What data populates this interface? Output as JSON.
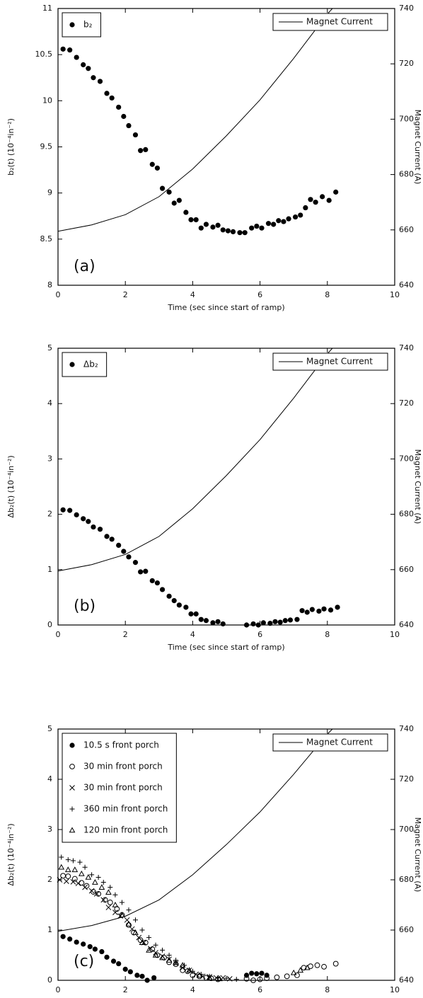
{
  "chart_data": [
    {
      "type": "scatter",
      "panel_label": "(a)",
      "xlabel": "Time (sec since start of ramp)",
      "ylabel": "b₂(t) (10⁻⁴in⁻²)",
      "y2label": "Magnet Current (A)",
      "xlim": [
        0,
        10
      ],
      "xticks": [
        0,
        2,
        4,
        6,
        8,
        10
      ],
      "ylim": [
        8,
        11
      ],
      "yticks": [
        8,
        8.5,
        9,
        9.5,
        10,
        10.5,
        11
      ],
      "y2lim": [
        640,
        740
      ],
      "y2ticks": [
        640,
        660,
        680,
        700,
        720,
        740
      ],
      "series": [
        {
          "name": "b₂",
          "color": "#000000",
          "marker": "filled-circle",
          "x": [
            0.15,
            0.35,
            0.55,
            0.75,
            0.9,
            1.05,
            1.25,
            1.45,
            1.6,
            1.8,
            1.95,
            2.1,
            2.3,
            2.45,
            2.6,
            2.8,
            2.95,
            3.1,
            3.3,
            3.45,
            3.6,
            3.8,
            3.95,
            4.1,
            4.25,
            4.4,
            4.6,
            4.75,
            4.9,
            5.05,
            5.2,
            5.4,
            5.55,
            5.75,
            5.9,
            6.05,
            6.25,
            6.4,
            6.55,
            6.7,
            6.85,
            7.05,
            7.2,
            7.35,
            7.5,
            7.65,
            7.85,
            8.05,
            8.25
          ],
          "values": [
            10.56,
            10.55,
            10.47,
            10.39,
            10.35,
            10.25,
            10.21,
            10.08,
            10.03,
            9.93,
            9.83,
            9.73,
            9.63,
            9.46,
            9.47,
            9.31,
            9.27,
            9.05,
            9.01,
            8.89,
            8.92,
            8.79,
            8.71,
            8.71,
            8.62,
            8.66,
            8.63,
            8.65,
            8.6,
            8.59,
            8.58,
            8.57,
            8.57,
            8.62,
            8.64,
            8.62,
            8.67,
            8.66,
            8.7,
            8.69,
            8.72,
            8.74,
            8.76,
            8.84,
            8.93,
            8.9,
            8.96,
            8.92,
            9.01
          ]
        },
        {
          "name": "Magnet Current",
          "color": "#000000",
          "style": "line",
          "axis": "y2",
          "x": [
            0,
            1,
            2,
            3,
            4,
            5,
            6,
            7,
            8,
            8.15
          ],
          "values": [
            659.5,
            661.8,
            665.5,
            672,
            682,
            694,
            707,
            722,
            738,
            740
          ]
        }
      ]
    },
    {
      "type": "scatter",
      "panel_label": "(b)",
      "xlabel": "Time (sec since start of ramp)",
      "ylabel": "Δb₂(t) (10⁻⁴in⁻²)",
      "y2label": "Magnet Current (A)",
      "xlim": [
        0,
        10
      ],
      "xticks": [
        0,
        2,
        4,
        6,
        8,
        10
      ],
      "ylim": [
        0,
        5
      ],
      "yticks": [
        0,
        1,
        2,
        3,
        4,
        5
      ],
      "y2lim": [
        640,
        740
      ],
      "y2ticks": [
        640,
        660,
        680,
        700,
        720,
        740
      ],
      "series": [
        {
          "name": "Δb₂",
          "color": "#000000",
          "marker": "filled-circle",
          "x": [
            0.15,
            0.35,
            0.55,
            0.75,
            0.9,
            1.05,
            1.25,
            1.45,
            1.6,
            1.8,
            1.95,
            2.1,
            2.3,
            2.45,
            2.6,
            2.8,
            2.95,
            3.1,
            3.3,
            3.45,
            3.6,
            3.8,
            3.95,
            4.1,
            4.25,
            4.4,
            4.6,
            4.75,
            4.9,
            5.6,
            5.8,
            5.95,
            6.1,
            6.3,
            6.45,
            6.6,
            6.75,
            6.9,
            7.1,
            7.25,
            7.4,
            7.55,
            7.75,
            7.9,
            8.1,
            8.3
          ],
          "values": [
            2.08,
            2.07,
            1.99,
            1.92,
            1.87,
            1.77,
            1.73,
            1.6,
            1.55,
            1.44,
            1.33,
            1.23,
            1.13,
            0.96,
            0.97,
            0.8,
            0.76,
            0.64,
            0.52,
            0.44,
            0.36,
            0.32,
            0.2,
            0.2,
            0.1,
            0.08,
            0.04,
            0.06,
            0.02,
            0.0,
            0.02,
            0.0,
            0.04,
            0.03,
            0.06,
            0.05,
            0.08,
            0.09,
            0.1,
            0.26,
            0.23,
            0.28,
            0.25,
            0.29,
            0.27,
            0.32
          ]
        },
        {
          "name": "Magnet Current",
          "color": "#000000",
          "style": "line",
          "axis": "y2",
          "x": [
            0,
            1,
            2,
            3,
            4,
            5,
            6,
            7,
            8,
            8.15
          ],
          "values": [
            659.5,
            661.8,
            665.5,
            672,
            682,
            694,
            707,
            722,
            738,
            740
          ]
        }
      ]
    },
    {
      "type": "scatter",
      "panel_label": "(c)",
      "xlabel": "Time (sec since start of ramp)",
      "ylabel": "Δb₂(t) (10⁻⁴in⁻²)",
      "y2label": "Magnet Current (A)",
      "xlim": [
        0,
        10
      ],
      "xticks": [
        0,
        2,
        4,
        6,
        8,
        10
      ],
      "ylim": [
        0,
        5
      ],
      "yticks": [
        0,
        1,
        2,
        3,
        4,
        5
      ],
      "y2lim": [
        640,
        740
      ],
      "y2ticks": [
        640,
        660,
        680,
        700,
        720,
        740
      ],
      "series": [
        {
          "name": "10.5 s  front porch",
          "color": "#000000",
          "marker": "filled-circle",
          "x": [
            0.15,
            0.35,
            0.55,
            0.75,
            0.95,
            1.1,
            1.3,
            1.45,
            1.65,
            1.8,
            2.0,
            2.15,
            2.35,
            2.5,
            2.65,
            2.85,
            5.6,
            5.75,
            5.9,
            6.05,
            6.2
          ],
          "values": [
            0.87,
            0.82,
            0.76,
            0.72,
            0.67,
            0.62,
            0.57,
            0.46,
            0.38,
            0.33,
            0.22,
            0.17,
            0.1,
            0.08,
            0.0,
            0.05,
            0.1,
            0.14,
            0.13,
            0.14,
            0.1
          ]
        },
        {
          "name": "30 min  front porch",
          "color": "#000000",
          "marker": "open-circle",
          "x": [
            0.15,
            0.3,
            0.5,
            0.7,
            0.85,
            1.05,
            1.2,
            1.4,
            1.55,
            1.75,
            1.9,
            2.1,
            2.25,
            2.45,
            2.6,
            2.8,
            2.95,
            3.15,
            3.3,
            3.5,
            3.7,
            3.85,
            4.0,
            4.2,
            4.4,
            4.55,
            4.75,
            5.6,
            5.8,
            6.0,
            6.2,
            6.5,
            6.8,
            7.1,
            7.3,
            7.5,
            7.7,
            7.9,
            8.25
          ],
          "values": [
            2.08,
            2.07,
            2.02,
            1.94,
            1.88,
            1.76,
            1.72,
            1.6,
            1.55,
            1.42,
            1.3,
            1.1,
            0.95,
            0.8,
            0.75,
            0.62,
            0.5,
            0.45,
            0.36,
            0.32,
            0.2,
            0.18,
            0.1,
            0.08,
            0.05,
            0.04,
            0.02,
            0.03,
            0.0,
            0.02,
            0.04,
            0.06,
            0.08,
            0.1,
            0.25,
            0.28,
            0.3,
            0.27,
            0.33
          ]
        },
        {
          "name": "30 min  front porch",
          "color": "#000000",
          "marker": "cross",
          "x": [
            0.05,
            0.25,
            0.45,
            0.6,
            0.8,
            1.0,
            1.15,
            1.35,
            1.5,
            1.7,
            1.85,
            2.05,
            2.2,
            2.4,
            2.55,
            2.75,
            2.9,
            3.1,
            3.3,
            3.5,
            3.7,
            3.9,
            4.1,
            4.3,
            4.5,
            4.7,
            4.9,
            5.1
          ],
          "values": [
            2.0,
            1.97,
            1.96,
            1.93,
            1.85,
            1.78,
            1.72,
            1.6,
            1.45,
            1.35,
            1.28,
            1.2,
            1.02,
            0.85,
            0.75,
            0.63,
            0.55,
            0.48,
            0.42,
            0.34,
            0.25,
            0.2,
            0.12,
            0.08,
            0.07,
            0.05,
            0.05,
            0.03
          ]
        },
        {
          "name": "360 min  front porch",
          "color": "#000000",
          "marker": "plus",
          "x": [
            0.1,
            0.3,
            0.45,
            0.65,
            0.8,
            1.0,
            1.2,
            1.35,
            1.55,
            1.7,
            1.9,
            2.1,
            2.3,
            2.5,
            2.7,
            2.9,
            3.1,
            3.3,
            3.5,
            3.75,
            4.0,
            4.25,
            4.5,
            4.75,
            5.0,
            5.3
          ],
          "values": [
            2.45,
            2.4,
            2.38,
            2.35,
            2.25,
            2.1,
            2.05,
            1.95,
            1.85,
            1.7,
            1.55,
            1.4,
            1.2,
            1.0,
            0.85,
            0.7,
            0.6,
            0.5,
            0.4,
            0.3,
            0.18,
            0.12,
            0.08,
            0.05,
            0.04,
            0.02
          ]
        },
        {
          "name": "120 min  front porch",
          "color": "#000000",
          "marker": "triangle",
          "x": [
            0.1,
            0.3,
            0.5,
            0.7,
            0.9,
            1.1,
            1.3,
            1.5,
            1.7,
            1.9,
            2.1,
            2.3,
            2.5,
            2.7,
            2.9,
            3.1,
            3.3,
            3.5,
            3.7,
            3.9,
            4.2,
            4.5,
            4.8,
            7.0,
            7.2,
            7.4
          ],
          "values": [
            2.25,
            2.2,
            2.2,
            2.12,
            2.05,
            1.95,
            1.85,
            1.75,
            1.5,
            1.3,
            1.12,
            0.95,
            0.75,
            0.6,
            0.5,
            0.45,
            0.4,
            0.35,
            0.3,
            0.2,
            0.1,
            0.05,
            0.03,
            0.15,
            0.2,
            0.25
          ]
        },
        {
          "name": "Magnet Current",
          "color": "#000000",
          "style": "line",
          "axis": "y2",
          "x": [
            0,
            1,
            2,
            3,
            4,
            5,
            6,
            7,
            8,
            8.15
          ],
          "values": [
            659.5,
            661.8,
            665.5,
            672,
            682,
            694,
            707,
            722,
            738,
            740
          ]
        }
      ]
    }
  ]
}
